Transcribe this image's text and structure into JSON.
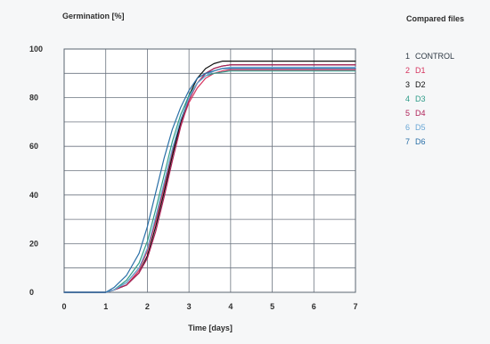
{
  "chart_data": {
    "type": "line",
    "title": "",
    "ylabel": "Germination [%]",
    "xlabel": "Time [days]",
    "xlim": [
      0,
      7
    ],
    "ylim": [
      0,
      100
    ],
    "x_ticks": [
      "0",
      "1",
      "2",
      "3",
      "4",
      "5",
      "6",
      "7"
    ],
    "y_ticks": [
      "0",
      "20",
      "40",
      "60",
      "80",
      "100"
    ],
    "grid": true,
    "legend_title": "Compared files",
    "legend_placement": "right",
    "series": [
      {
        "number": "1",
        "name": "CONTROL",
        "color": "#2f3a45",
        "x": [
          0,
          0.5,
          1,
          1.2,
          1.5,
          1.8,
          2.0,
          2.2,
          2.4,
          2.6,
          2.8,
          3.0,
          3.2,
          3.4,
          3.6,
          3.8,
          4.0,
          4.5,
          5,
          6,
          7
        ],
        "y": [
          0,
          0,
          0,
          1,
          4,
          10,
          18,
          30,
          44,
          58,
          70,
          80,
          86,
          90,
          92,
          93,
          93.5,
          93.5,
          93.5,
          93.5,
          93.5
        ]
      },
      {
        "number": "2",
        "name": "D1",
        "color": "#d6355f",
        "x": [
          0,
          0.5,
          1,
          1.2,
          1.5,
          1.8,
          2.0,
          2.2,
          2.4,
          2.6,
          2.8,
          3.0,
          3.2,
          3.4,
          3.6,
          3.8,
          4.0,
          4.5,
          5,
          6,
          7
        ],
        "y": [
          0,
          0,
          0,
          1,
          3,
          9,
          17,
          29,
          43,
          57,
          69,
          78,
          84,
          88,
          90,
          91,
          91.5,
          91.5,
          91.5,
          91.5,
          91.5
        ]
      },
      {
        "number": "3",
        "name": "D2",
        "color": "#111111",
        "x": [
          0,
          0.5,
          1,
          1.2,
          1.5,
          1.8,
          2.0,
          2.2,
          2.4,
          2.6,
          2.8,
          3.0,
          3.2,
          3.4,
          3.6,
          3.8,
          4.0,
          4.5,
          5,
          6,
          7
        ],
        "y": [
          0,
          0,
          0,
          1,
          3,
          8,
          15,
          27,
          41,
          56,
          70,
          81,
          88,
          92,
          94,
          95,
          95,
          95,
          95,
          95,
          95
        ]
      },
      {
        "number": "4",
        "name": "D3",
        "color": "#2f9c89",
        "x": [
          0,
          0.5,
          1,
          1.2,
          1.5,
          1.8,
          2.0,
          2.2,
          2.4,
          2.6,
          2.8,
          3.0,
          3.2,
          3.4,
          3.6,
          3.8,
          4.0,
          4.5,
          5,
          6,
          7
        ],
        "y": [
          0,
          0,
          0,
          1,
          5,
          12,
          21,
          34,
          48,
          62,
          73,
          81,
          86,
          89,
          90,
          90.5,
          91,
          91,
          91,
          91,
          91
        ]
      },
      {
        "number": "5",
        "name": "D4",
        "color": "#b0245a",
        "x": [
          0,
          0.5,
          1,
          1.2,
          1.5,
          1.8,
          2.0,
          2.2,
          2.4,
          2.6,
          2.8,
          3.0,
          3.2,
          3.4,
          3.6,
          3.8,
          4.0,
          4.5,
          5,
          6,
          7
        ],
        "y": [
          0,
          0,
          0,
          1,
          3,
          8,
          14,
          25,
          39,
          54,
          68,
          79,
          86,
          90,
          92,
          93,
          93.5,
          93.5,
          93.5,
          93.5,
          93.5
        ]
      },
      {
        "number": "6",
        "name": "D5",
        "color": "#6aa7d6",
        "x": [
          0,
          0.5,
          1,
          1.2,
          1.5,
          1.8,
          2.0,
          2.2,
          2.4,
          2.6,
          2.8,
          3.0,
          3.2,
          3.4,
          3.6,
          3.8,
          4.0,
          4.5,
          5,
          6,
          7
        ],
        "y": [
          0,
          0,
          0,
          1,
          4,
          10,
          18,
          31,
          45,
          59,
          71,
          80,
          86,
          89,
          91,
          92,
          92.5,
          92.5,
          92.5,
          92.5,
          92.5
        ]
      },
      {
        "number": "7",
        "name": "D6",
        "color": "#2a6fa7",
        "x": [
          0,
          0.5,
          1,
          1.2,
          1.5,
          1.8,
          2.0,
          2.2,
          2.4,
          2.6,
          2.8,
          3.0,
          3.2,
          3.4,
          3.6,
          3.8,
          4.0,
          4.5,
          5,
          6,
          7
        ],
        "y": [
          0,
          0,
          0,
          2,
          7,
          16,
          27,
          41,
          55,
          67,
          76,
          83,
          88,
          90,
          91,
          92,
          92,
          92,
          92,
          92,
          92
        ]
      }
    ]
  }
}
